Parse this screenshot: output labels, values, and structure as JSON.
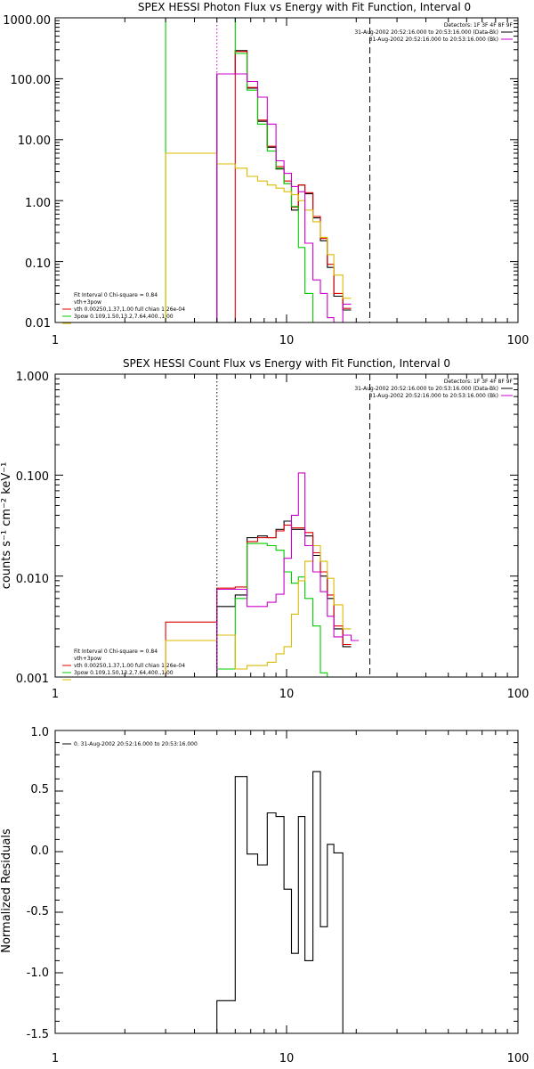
{
  "colors": {
    "black": "#000000",
    "red": "#dd0000",
    "green": "#00cc00",
    "yellow": "#ddbb00",
    "magenta": "#cc00cc"
  },
  "chart_data": [
    {
      "type": "line",
      "title": "SPEX HESSI Photon Flux vs Energy with Fit Function, Interval 0",
      "xscale": "log",
      "yscale": "log",
      "xlim": [
        1,
        100
      ],
      "ylim": [
        0.01,
        1000
      ],
      "x_ticks": [
        "1",
        "10",
        "100"
      ],
      "y_ticks": [
        "0.01",
        "0.10",
        "1.00",
        "10.00",
        "100.00",
        "1000.00"
      ],
      "detector_label": "Detectors: 1F 3F 4F 8F 9F",
      "legend_right": [
        {
          "text": "31-Aug-2002 20:52:16.000 to 20:53:16.000 (Data-Bk)",
          "color": "#000000"
        },
        {
          "text": "31-Aug-2002 20:52:16.000 to 20:53:16.000 (Bk)",
          "color": "#cc00cc"
        }
      ],
      "legend_left": [
        {
          "text": "Fit Interval  0    Chi-square = 0.84",
          "color": null
        },
        {
          "text": "vth+3pow",
          "color": "#dd0000"
        },
        {
          "text": "vth 0.00250,1.37,1.00  full chian 1.26e-04",
          "color": "#00cc00"
        },
        {
          "text": "3pow 0.109,1.50,13.2,7.64,400.,1.00",
          "color": "#ddbb00"
        }
      ],
      "vlines": [
        {
          "x": 5.0,
          "style": "dotted",
          "color": "#cc00cc"
        },
        {
          "x": 22.9,
          "style": "dashed",
          "color": "#000000"
        }
      ],
      "edges": [
        3.0,
        5.0,
        6.0,
        6.75,
        7.5,
        8.25,
        9.0,
        9.75,
        10.5,
        11.25,
        12.0,
        13.0,
        14.0,
        15.0,
        16.0,
        17.5,
        19.0,
        20.5,
        22.9
      ],
      "series": [
        {
          "color": "#000000",
          "values": [
            null,
            120,
            290,
            70,
            20,
            7.5,
            3.3,
            1.9,
            0.7,
            1.8,
            1.3,
            0.52,
            0.22,
            0.08,
            0.027,
            0.016
          ]
        },
        {
          "color": "#dd0000",
          "values": [
            null,
            null,
            280,
            72,
            21,
            7.8,
            3.6,
            2.1,
            0.78,
            1.8,
            1.35,
            0.55,
            0.24,
            0.09,
            0.03,
            0.017
          ]
        },
        {
          "color": "#00cc00",
          "values": [
            50000,
            1200,
            260,
            65,
            18,
            6.5,
            3.4,
            1.9,
            0.8,
            0.17,
            0.03,
            0.01,
            0.003
          ]
        },
        {
          "color": "#ddbb00",
          "values": [
            6.0,
            4.0,
            3.4,
            2.5,
            2.1,
            1.8,
            1.6,
            1.4,
            1.25,
            1.0,
            0.7,
            0.45,
            0.25,
            0.13,
            0.06,
            0.025
          ]
        },
        {
          "color": "#cc00cc",
          "values": [
            null,
            120,
            120,
            90,
            50,
            18,
            4.5,
            2.8,
            1.7,
            1.4,
            0.2,
            0.05,
            0.03,
            0.012,
            0.01,
            0.02
          ]
        }
      ]
    },
    {
      "type": "line",
      "title": "SPEX HESSI Count Flux vs Energy with Fit Function, Interval 0",
      "ylabel": "counts s⁻¹ cm⁻² keV⁻¹",
      "xscale": "log",
      "yscale": "log",
      "xlim": [
        1,
        100
      ],
      "ylim": [
        0.001,
        1.0
      ],
      "x_ticks": [
        "1",
        "10",
        "100"
      ],
      "y_ticks": [
        "0.001",
        "0.010",
        "0.100",
        "1.000"
      ],
      "detector_label": "Detectors: 1F 3F 4F 8F 9F",
      "legend_right": [
        {
          "text": "31-Aug-2002 20:52:16.000 to 20:53:16.000 (Data-Bk)",
          "color": "#000000"
        },
        {
          "text": "31-Aug-2002 20:52:16.000 to 20:53:16.000 (Bk)",
          "color": "#cc00cc"
        }
      ],
      "legend_left": [
        {
          "text": "Fit Interval  0    Chi-square = 0.84",
          "color": null
        },
        {
          "text": "vth+3pow",
          "color": "#dd0000"
        },
        {
          "text": "vth 0.00250,1.37,1.00  full chian 1.26e-04",
          "color": "#00cc00"
        },
        {
          "text": "3pow 0.109,1.50,13.2,7.64,400.,1.00",
          "color": "#ddbb00"
        }
      ],
      "vlines": [
        {
          "x": 5.0,
          "style": "dotted",
          "color": "#000000"
        },
        {
          "x": 22.9,
          "style": "dashed",
          "color": "#000000"
        }
      ],
      "edges": [
        3.0,
        5.0,
        6.0,
        6.75,
        7.5,
        8.25,
        9.0,
        9.75,
        10.5,
        11.25,
        12.0,
        13.0,
        14.0,
        15.0,
        16.0,
        17.5,
        19.0,
        20.5,
        22.9
      ],
      "series": [
        {
          "color": "#000000",
          "values": [
            null,
            0.005,
            0.0065,
            0.024,
            0.025,
            0.024,
            0.029,
            0.035,
            0.029,
            0.029,
            0.025,
            0.016,
            0.01,
            0.006,
            0.003,
            0.002
          ]
        },
        {
          "color": "#dd0000",
          "values": [
            0.0035,
            0.0076,
            0.0078,
            0.022,
            0.024,
            0.024,
            0.028,
            0.032,
            0.03,
            0.03,
            0.027,
            0.017,
            0.011,
            0.0065,
            0.0032,
            0.0021
          ]
        },
        {
          "color": "#00cc00",
          "values": [
            null,
            0.0012,
            0.006,
            0.021,
            0.021,
            0.02,
            0.018,
            0.011,
            0.0085,
            0.0098,
            0.006,
            0.0032,
            0.0011,
            0.001
          ]
        },
        {
          "color": "#ddbb00",
          "values": [
            0.0023,
            0.0026,
            0.0012,
            0.0013,
            0.0013,
            0.0014,
            0.0017,
            0.002,
            0.0042,
            0.009,
            0.014,
            0.02,
            0.014,
            0.0095,
            0.0052,
            0.003
          ]
        },
        {
          "color": "#cc00cc",
          "values": [
            null,
            0.0074,
            0.0074,
            0.005,
            0.005,
            0.0055,
            0.0066,
            0.015,
            0.04,
            0.105,
            0.02,
            0.011,
            0.007,
            0.004,
            0.0025,
            0.0026,
            0.0023
          ]
        }
      ]
    },
    {
      "type": "line",
      "title": "",
      "ylabel": "Normalized Residuals",
      "xscale": "log",
      "yscale": "linear",
      "xlim": [
        1,
        100
      ],
      "ylim": [
        -1.5,
        1.0
      ],
      "x_ticks": [
        "1",
        "10",
        "100"
      ],
      "y_ticks": [
        "-1.5",
        "-1.0",
        "-0.5",
        "0.0",
        "0.5",
        "1.0"
      ],
      "legend": {
        "text": "0. 31-Aug-2002 20:52:16.000 to 20:53:16.000",
        "color": "#000000"
      },
      "edges": [
        5.0,
        6.0,
        6.75,
        7.5,
        8.25,
        9.0,
        9.75,
        10.5,
        11.25,
        12.0,
        13.0,
        14.0,
        15.0,
        16.0,
        17.5,
        19.0,
        20.5,
        22.9
      ],
      "series": [
        {
          "color": "#000000",
          "values": [
            -1.23,
            0.62,
            -0.02,
            -0.11,
            0.32,
            0.29,
            -0.31,
            -0.84,
            0.29,
            -0.9,
            0.66,
            -0.62,
            0.06,
            -0.01,
            -1.6
          ]
        }
      ]
    }
  ]
}
